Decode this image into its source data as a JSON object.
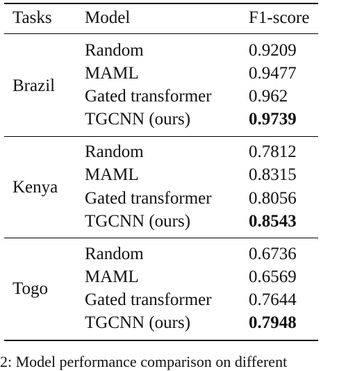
{
  "table": {
    "headers": {
      "tasks": "Tasks",
      "model": "Model",
      "score": "F1-score"
    },
    "groups": [
      {
        "task": "Brazil",
        "rows": [
          {
            "model": "Random",
            "score": "0.9209",
            "best": false
          },
          {
            "model": "MAML",
            "score": "0.9477",
            "best": false
          },
          {
            "model": "Gated transformer",
            "score": "0.962",
            "best": false
          },
          {
            "model": "TGCNN (ours)",
            "score": "0.9739",
            "best": true
          }
        ]
      },
      {
        "task": "Kenya",
        "rows": [
          {
            "model": "Random",
            "score": "0.7812",
            "best": false
          },
          {
            "model": "MAML",
            "score": "0.8315",
            "best": false
          },
          {
            "model": "Gated transformer",
            "score": "0.8056",
            "best": false
          },
          {
            "model": "TGCNN (ours)",
            "score": "0.8543",
            "best": true
          }
        ]
      },
      {
        "task": "Togo",
        "rows": [
          {
            "model": "Random",
            "score": "0.6736",
            "best": false
          },
          {
            "model": "MAML",
            "score": "0.6569",
            "best": false
          },
          {
            "model": "Gated transformer",
            "score": "0.7644",
            "best": false
          },
          {
            "model": "TGCNN (ours)",
            "score": "0.7948",
            "best": true
          }
        ]
      }
    ]
  },
  "caption": "2: Model performance comparison on different"
}
